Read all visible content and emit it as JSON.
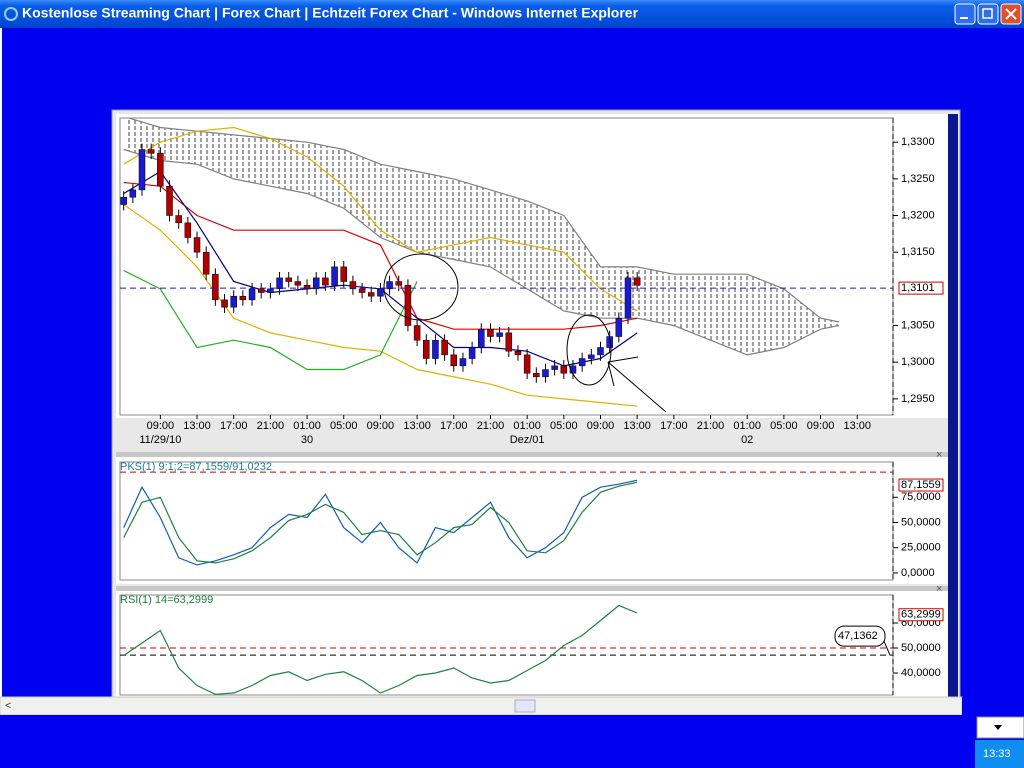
{
  "window": {
    "title": "Kostenlose Streaming Chart | Forex Chart | Echtzeit Forex Chart - Windows Internet Explorer"
  },
  "taskbar": {
    "clock": "13:33"
  },
  "chart_data": [
    {
      "type": "candlestick",
      "x": [
        5,
        6,
        7,
        8,
        9,
        10,
        11,
        12,
        13,
        14,
        15,
        16,
        17,
        18,
        19,
        20,
        21,
        22,
        23,
        24,
        25,
        26,
        27,
        28,
        29,
        30,
        31,
        32,
        33,
        34,
        35,
        36,
        37,
        38,
        39,
        40,
        41,
        42,
        43,
        44,
        45,
        46,
        47,
        48,
        49,
        50,
        51,
        52,
        53,
        54,
        55,
        56,
        57,
        58,
        59,
        60,
        61
      ],
      "open": [
        1.3215,
        1.3225,
        1.3235,
        1.329,
        1.3285,
        1.324,
        1.32,
        1.319,
        1.317,
        1.315,
        1.312,
        1.3085,
        1.3075,
        1.309,
        1.3085,
        1.31,
        1.3095,
        1.31,
        1.3115,
        1.311,
        1.3105,
        1.31,
        1.3115,
        1.3105,
        1.313,
        1.311,
        1.31,
        1.3095,
        1.309,
        1.31,
        1.311,
        1.3105,
        1.305,
        1.303,
        1.3005,
        1.303,
        1.301,
        1.2995,
        1.3005,
        1.302,
        1.3045,
        1.3035,
        1.304,
        1.3015,
        1.301,
        1.2985,
        1.298,
        1.299,
        1.2995,
        1.2985,
        1.2995,
        1.3005,
        1.301,
        1.302,
        1.3035,
        1.306,
        1.3115
      ],
      "high": [
        1.3233,
        1.3243,
        1.3298,
        1.3298,
        1.3293,
        1.3248,
        1.3208,
        1.3198,
        1.3178,
        1.3158,
        1.3128,
        1.3093,
        1.3098,
        1.3098,
        1.3108,
        1.3108,
        1.3108,
        1.3123,
        1.3123,
        1.3118,
        1.3113,
        1.3123,
        1.3123,
        1.3138,
        1.3138,
        1.3118,
        1.3108,
        1.3103,
        1.3108,
        1.3118,
        1.3118,
        1.3113,
        1.3058,
        1.3038,
        1.3038,
        1.3038,
        1.3018,
        1.3013,
        1.3028,
        1.3053,
        1.3053,
        1.3048,
        1.3048,
        1.3023,
        1.3018,
        1.2993,
        1.2998,
        1.3003,
        1.3003,
        1.3003,
        1.3013,
        1.3018,
        1.3028,
        1.3043,
        1.3068,
        1.3123,
        1.3123
      ],
      "low": [
        1.3207,
        1.3217,
        1.3227,
        1.3277,
        1.3232,
        1.3192,
        1.3182,
        1.3162,
        1.3142,
        1.3112,
        1.3077,
        1.3067,
        1.3067,
        1.3077,
        1.3077,
        1.3087,
        1.3087,
        1.3092,
        1.3102,
        1.3097,
        1.3092,
        1.3092,
        1.3097,
        1.3097,
        1.3102,
        1.3092,
        1.3087,
        1.3082,
        1.3082,
        1.3092,
        1.3097,
        1.3042,
        1.3022,
        1.2997,
        1.2997,
        1.3002,
        1.2987,
        1.2987,
        1.2997,
        1.3012,
        1.3027,
        1.3027,
        1.3007,
        1.3002,
        1.2977,
        1.2972,
        1.2972,
        1.2982,
        1.2977,
        1.2977,
        1.2987,
        1.2997,
        1.3002,
        1.3012,
        1.3027,
        1.3052,
        1.3097
      ],
      "close": [
        1.3225,
        1.3235,
        1.329,
        1.3285,
        1.324,
        1.32,
        1.319,
        1.317,
        1.315,
        1.312,
        1.3085,
        1.3075,
        1.309,
        1.3085,
        1.31,
        1.3095,
        1.31,
        1.3115,
        1.311,
        1.3105,
        1.31,
        1.3115,
        1.3105,
        1.313,
        1.311,
        1.31,
        1.3095,
        1.309,
        1.31,
        1.311,
        1.3105,
        1.305,
        1.303,
        1.3005,
        1.303,
        1.301,
        1.2995,
        1.3005,
        1.302,
        1.3045,
        1.3035,
        1.304,
        1.3015,
        1.301,
        1.2985,
        1.298,
        1.299,
        1.2995,
        1.2985,
        1.2995,
        1.3005,
        1.301,
        1.302,
        1.3035,
        1.306,
        1.3115,
        1.3105
      ],
      "up_color": "#1a1ad0",
      "down_color": "#b00000",
      "xlim": [
        4.6,
        88.9
      ],
      "xticks": [
        {
          "value": 9,
          "label": "09:00"
        },
        {
          "value": 13,
          "label": "13:00"
        },
        {
          "value": 17,
          "label": "17:00"
        },
        {
          "value": 21,
          "label": "21:00"
        },
        {
          "value": 25,
          "label": "01:00"
        },
        {
          "value": 29,
          "label": "05:00"
        },
        {
          "value": 33,
          "label": "09:00"
        },
        {
          "value": 37,
          "label": "13:00"
        },
        {
          "value": 41,
          "label": "17:00"
        },
        {
          "value": 45,
          "label": "21:00"
        },
        {
          "value": 49,
          "label": "01:00"
        },
        {
          "value": 53,
          "label": "05:00"
        },
        {
          "value": 57,
          "label": "09:00"
        },
        {
          "value": 61,
          "label": "13:00"
        },
        {
          "value": 65,
          "label": "17:00"
        },
        {
          "value": 69,
          "label": "21:00"
        },
        {
          "value": 73,
          "label": "01:00"
        },
        {
          "value": 77,
          "label": "05:00"
        },
        {
          "value": 81,
          "label": "09:00"
        },
        {
          "value": 85,
          "label": "13:00"
        }
      ],
      "date_labels": [
        {
          "value": 9,
          "label": "11/29/10"
        },
        {
          "value": 25,
          "label": "30"
        },
        {
          "value": 49,
          "label": "Dez/01"
        },
        {
          "value": 73,
          "label": "02"
        }
      ],
      "ylim": [
        1.2928,
        1.3333
      ],
      "yticks": [
        {
          "value": 1.33,
          "label": "1,3300"
        },
        {
          "value": 1.325,
          "label": "1,3250"
        },
        {
          "value": 1.32,
          "label": "1,3200"
        },
        {
          "value": 1.315,
          "label": "1,3150"
        },
        {
          "value": 1.305,
          "label": "1,3050"
        },
        {
          "value": 1.3,
          "label": "1,3000"
        },
        {
          "value": 1.295,
          "label": "1,2950"
        }
      ],
      "last_price": {
        "value": 1.3101,
        "label": "1,3101",
        "color": "#1a1ad0"
      },
      "cloud": {
        "color": "#808080",
        "x": [
          5,
          9,
          13,
          17,
          21,
          25,
          29,
          33,
          37,
          41,
          45,
          49,
          53,
          57,
          61,
          65,
          69,
          73,
          77,
          81,
          83
        ],
        "upper": [
          1.3335,
          1.332,
          1.3315,
          1.331,
          1.3305,
          1.33,
          1.329,
          1.327,
          1.326,
          1.325,
          1.3235,
          1.322,
          1.32,
          1.313,
          1.313,
          1.312,
          1.312,
          1.312,
          1.31,
          1.306,
          1.3055
        ],
        "lower": [
          1.329,
          1.3275,
          1.327,
          1.325,
          1.324,
          1.323,
          1.321,
          1.317,
          1.315,
          1.314,
          1.313,
          1.31,
          1.307,
          1.306,
          1.306,
          1.305,
          1.303,
          1.301,
          1.302,
          1.3045,
          1.305
        ]
      },
      "lines": [
        {
          "color": "#e0b000",
          "x": [
            5,
            9,
            13,
            17,
            21,
            25,
            29,
            33,
            37,
            41,
            45,
            49,
            53,
            57,
            61
          ],
          "values": [
            1.327,
            1.33,
            1.3315,
            1.332,
            1.3305,
            1.328,
            1.324,
            1.318,
            1.315,
            1.316,
            1.317,
            1.316,
            1.315,
            1.31,
            1.307
          ]
        },
        {
          "color": "#e0b000",
          "x": [
            5,
            9,
            13,
            17,
            21,
            25,
            29,
            33,
            37,
            41,
            45,
            49,
            53,
            57,
            61
          ],
          "values": [
            1.3215,
            1.318,
            1.313,
            1.306,
            1.304,
            1.303,
            1.302,
            1.3015,
            1.299,
            1.298,
            1.297,
            1.2955,
            1.295,
            1.2945,
            1.294
          ]
        },
        {
          "color": "#e00000",
          "x": [
            5,
            9,
            13,
            17,
            21,
            25,
            29,
            33,
            37,
            41,
            45,
            49,
            53,
            57,
            61
          ],
          "values": [
            1.3245,
            1.324,
            1.32,
            1.318,
            1.318,
            1.318,
            1.318,
            1.316,
            1.306,
            1.3045,
            1.3045,
            1.3045,
            1.3045,
            1.305,
            1.306
          ]
        },
        {
          "color": "#000080",
          "x": [
            5,
            9,
            13,
            17,
            21,
            25,
            29,
            33,
            37,
            41,
            45,
            49,
            53,
            57,
            61
          ],
          "values": [
            1.323,
            1.326,
            1.319,
            1.311,
            1.3095,
            1.31,
            1.3105,
            1.31,
            1.306,
            1.302,
            1.302,
            1.3015,
            1.2995,
            1.3005,
            1.304
          ]
        },
        {
          "color": "#20b020",
          "x": [
            5,
            9,
            13,
            17,
            21,
            25,
            29,
            33,
            37
          ],
          "values": [
            1.3125,
            1.31,
            1.302,
            1.303,
            1.302,
            1.299,
            1.299,
            1.301,
            1.311
          ]
        }
      ]
    },
    {
      "type": "line",
      "title": "PKS(1) 9;1;2=87,1559/91,0232",
      "title_color": "#2080a0",
      "x": [
        5,
        7,
        9,
        11,
        13,
        15,
        17,
        19,
        21,
        23,
        25,
        27,
        29,
        31,
        33,
        35,
        37,
        39,
        41,
        43,
        45,
        47,
        49,
        51,
        53,
        55,
        57,
        59,
        61
      ],
      "series": [
        {
          "color": "#1060b0",
          "values": [
            45,
            85,
            55,
            15,
            8,
            12,
            18,
            25,
            45,
            58,
            55,
            78,
            45,
            30,
            50,
            25,
            10,
            45,
            40,
            55,
            70,
            35,
            15,
            25,
            40,
            75,
            85,
            88,
            92
          ]
        },
        {
          "color": "#208040",
          "values": [
            35,
            70,
            75,
            35,
            12,
            10,
            14,
            22,
            35,
            52,
            58,
            68,
            60,
            38,
            42,
            38,
            18,
            30,
            45,
            48,
            65,
            50,
            22,
            20,
            32,
            60,
            80,
            86,
            90
          ]
        }
      ],
      "xlim": [
        4.6,
        88.9
      ],
      "ylim": [
        -7,
        110
      ],
      "yticks": [
        {
          "value": 0,
          "label": "0,0000"
        },
        {
          "value": 25,
          "label": "25,0000"
        },
        {
          "value": 50,
          "label": "50,0000"
        },
        {
          "value": 75,
          "label": "75,0000"
        }
      ],
      "reference_lines": [
        {
          "value": 100,
          "color": "#cc0000"
        }
      ],
      "last_value": {
        "value": 87.1559,
        "label": "87,1559"
      }
    },
    {
      "type": "line",
      "title": "RSI(1) 14=63,2999",
      "title_color": "#208040",
      "x": [
        5,
        7,
        9,
        11,
        13,
        15,
        17,
        19,
        21,
        23,
        25,
        27,
        29,
        31,
        33,
        35,
        37,
        39,
        41,
        43,
        45,
        47,
        49,
        51,
        53,
        55,
        57,
        59,
        61
      ],
      "series": [
        {
          "color": "#208040",
          "values": [
            47,
            52,
            57,
            42,
            35,
            31.5,
            32,
            35,
            39,
            40.5,
            37,
            39.5,
            40.5,
            37,
            32,
            35,
            39,
            40,
            42,
            38,
            36,
            37,
            41,
            45,
            51,
            55,
            61,
            67,
            64
          ]
        }
      ],
      "xlim": [
        4.6,
        88.9
      ],
      "ylim": [
        31.2,
        71.2
      ],
      "yticks": [
        {
          "value": 40,
          "label": "40,0000"
        },
        {
          "value": 50,
          "label": "50,0000"
        },
        {
          "value": 60,
          "label": "60,0000"
        }
      ],
      "reference_lines": [
        {
          "value": 50,
          "color": "#cc0000"
        }
      ],
      "last_value": {
        "value": 63.2999,
        "label": "63,2999"
      },
      "annotation": {
        "value": 47.1362,
        "label": "47,1362"
      }
    }
  ]
}
